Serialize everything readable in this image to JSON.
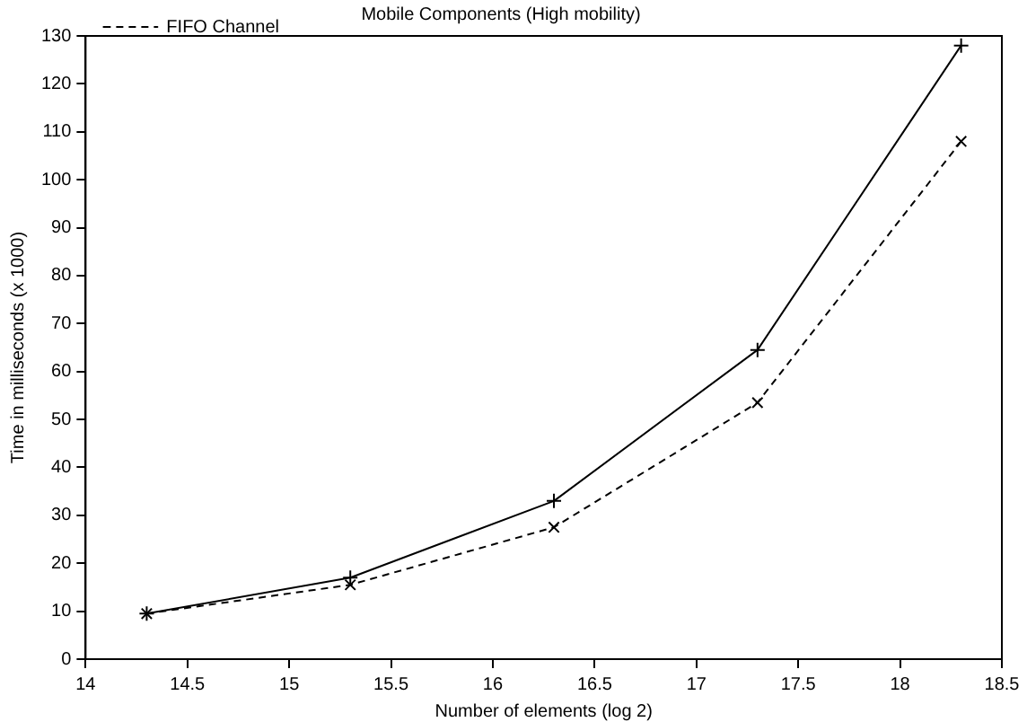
{
  "chart_data": {
    "type": "line",
    "title": "Mobile Components (High mobility)",
    "xlabel": "Number of elements (log 2)",
    "ylabel": "Time in milliseconds (x 1000)",
    "x": [
      14.3,
      15.3,
      16.3,
      17.3,
      18.3
    ],
    "series": [
      {
        "color": "#000000",
        "values": [
          9.5,
          17,
          33,
          64.5,
          128
        ],
        "marker": "cross",
        "line_style": "solid"
      },
      {
        "name": "FIFO Channel",
        "color": "#000000",
        "values": [
          9.5,
          15.5,
          27.5,
          53.5,
          108
        ],
        "marker": "cross",
        "line_style": "dashed"
      }
    ],
    "xlim": [
      14,
      18.5
    ],
    "xticks": [
      14,
      14.5,
      15,
      15.5,
      16,
      16.5,
      17,
      17.5,
      18,
      18.5
    ],
    "ylim": [
      0,
      130
    ],
    "yticks": [
      0,
      10,
      20,
      30,
      40,
      50,
      60,
      70,
      80,
      90,
      100,
      110,
      120,
      130
    ],
    "grid": false,
    "legend": "top left"
  }
}
